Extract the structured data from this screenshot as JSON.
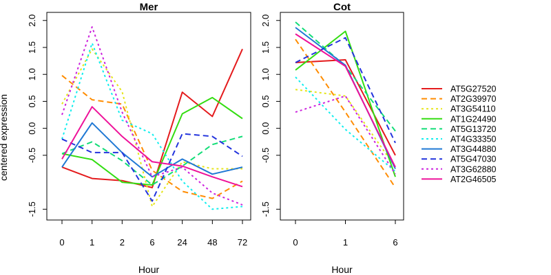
{
  "chart_data": {
    "type": "line",
    "ylabel": "centered expression",
    "legend": {
      "placement": "right",
      "entries": [
        {
          "name": "AT5G27520",
          "color": "#e41a1c",
          "dash": "solid"
        },
        {
          "name": "AT2G39970",
          "color": "#ff8c00",
          "dash": "dashed"
        },
        {
          "name": "AT3G54110",
          "color": "#e5e51a",
          "dash": "dotted"
        },
        {
          "name": "AT1G24490",
          "color": "#33dd11",
          "dash": "solid"
        },
        {
          "name": "AT5G13720",
          "color": "#11dd77",
          "dash": "dashed"
        },
        {
          "name": "AT4G33350",
          "color": "#11eeee",
          "dash": "dotted"
        },
        {
          "name": "AT3G44880",
          "color": "#1f78d4",
          "dash": "solid"
        },
        {
          "name": "AT5G47030",
          "color": "#2233dd",
          "dash": "dashed"
        },
        {
          "name": "AT3G62880",
          "color": "#cc22dd",
          "dash": "dotted"
        },
        {
          "name": "AT2G46505",
          "color": "#ee1199",
          "dash": "solid"
        }
      ]
    },
    "panels": [
      {
        "title": "Mer",
        "xlabel": "Hour",
        "categories": [
          "0",
          "1",
          "2",
          "6",
          "24",
          "48",
          "72"
        ],
        "y_ticks": [
          -1.5,
          -0.5,
          0.0,
          0.5,
          1.0,
          1.5,
          2.0
        ],
        "y_tick_labels": [
          "-1.5",
          "-0.5",
          "0.0",
          "0.5",
          "1.0",
          "1.5",
          "2.0"
        ],
        "ylim": [
          -1.7,
          2.15
        ],
        "series": [
          {
            "name": "AT5G27520",
            "values": [
              -0.72,
              -0.93,
              -0.97,
              -1.1,
              0.67,
              0.22,
              1.47
            ]
          },
          {
            "name": "AT2G39970",
            "values": [
              0.98,
              0.53,
              0.45,
              -0.78,
              -1.17,
              -1.3,
              -0.98
            ]
          },
          {
            "name": "AT3G54110",
            "values": [
              0.45,
              1.47,
              0.68,
              -1.45,
              -0.62,
              -0.75,
              -0.75
            ]
          },
          {
            "name": "AT1G24490",
            "values": [
              -0.47,
              -0.58,
              -1.0,
              -1.05,
              0.27,
              0.57,
              0.18
            ]
          },
          {
            "name": "AT5G13720",
            "values": [
              -0.47,
              -0.25,
              -0.6,
              -1.05,
              -0.7,
              -0.3,
              -0.15
            ]
          },
          {
            "name": "AT4G33350",
            "values": [
              -0.2,
              1.58,
              0.15,
              -0.1,
              -0.98,
              -1.5,
              -1.45
            ]
          },
          {
            "name": "AT3G44880",
            "values": [
              -0.72,
              0.1,
              -0.45,
              -0.9,
              -0.57,
              -0.85,
              -0.72
            ]
          },
          {
            "name": "AT5G47030",
            "values": [
              -0.2,
              -0.45,
              -0.45,
              -1.35,
              -0.1,
              -0.15,
              -0.52
            ]
          },
          {
            "name": "AT3G62880",
            "values": [
              0.25,
              1.88,
              0.3,
              -0.9,
              -0.72,
              -1.2,
              -1.42
            ]
          },
          {
            "name": "AT2G46505",
            "values": [
              -0.57,
              0.4,
              -0.15,
              -0.62,
              -0.7,
              -0.9,
              -1.08
            ]
          }
        ]
      },
      {
        "title": "Cot",
        "xlabel": "Hour",
        "categories": [
          "0",
          "1",
          "6"
        ],
        "y_ticks": [
          -1.5,
          -0.5,
          0.0,
          0.5,
          1.0,
          1.5,
          2.0
        ],
        "y_tick_labels": [
          "-1.5",
          "-0.5",
          "0.0",
          "0.5",
          "1.0",
          "1.5",
          "2.0"
        ],
        "ylim": [
          -1.7,
          2.15
        ],
        "series": [
          {
            "name": "AT5G27520",
            "values": [
              1.22,
              1.27,
              -0.5
            ]
          },
          {
            "name": "AT2G39970",
            "values": [
              1.65,
              0.3,
              -1.1
            ]
          },
          {
            "name": "AT3G54110",
            "values": [
              0.72,
              0.6,
              -0.72
            ]
          },
          {
            "name": "AT1G24490",
            "values": [
              1.08,
              1.8,
              -0.9
            ]
          },
          {
            "name": "AT5G13720",
            "values": [
              1.97,
              1.15,
              -0.05
            ]
          },
          {
            "name": "AT4G33350",
            "values": [
              0.95,
              -0.02,
              -0.8
            ]
          },
          {
            "name": "AT3G44880",
            "values": [
              1.87,
              1.17,
              -0.75
            ]
          },
          {
            "name": "AT5G47030",
            "values": [
              1.22,
              1.68,
              -0.27
            ]
          },
          {
            "name": "AT3G62880",
            "values": [
              0.3,
              0.6,
              -0.85
            ]
          },
          {
            "name": "AT2G46505",
            "values": [
              1.75,
              1.15,
              -0.72
            ]
          }
        ]
      }
    ]
  }
}
